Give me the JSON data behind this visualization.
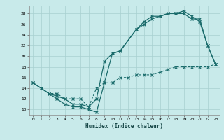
{
  "xlabel": "Humidex (Indice chaleur)",
  "bg_color": "#c8eaea",
  "grid_color": "#a8d0d0",
  "line_color": "#1a6b6b",
  "xlim": [
    -0.5,
    23.5
  ],
  "ylim": [
    9,
    29.5
  ],
  "yticks": [
    10,
    12,
    14,
    16,
    18,
    20,
    22,
    24,
    26,
    28
  ],
  "xticks": [
    0,
    1,
    2,
    3,
    4,
    5,
    6,
    7,
    8,
    9,
    10,
    11,
    12,
    13,
    14,
    15,
    16,
    17,
    18,
    19,
    20,
    21,
    22,
    23
  ],
  "line1_x": [
    0,
    1,
    2,
    3,
    4,
    5,
    6,
    7,
    8,
    9,
    10,
    11,
    13,
    14,
    15,
    16,
    17,
    18,
    19,
    20,
    21,
    22,
    23
  ],
  "line1_y": [
    15,
    14,
    13,
    12,
    11,
    10.5,
    10.5,
    10,
    9.5,
    15,
    20.5,
    21,
    25,
    26.5,
    27.5,
    27.5,
    28,
    28,
    28.5,
    27.5,
    26.5,
    22,
    18.5
  ],
  "line2_x": [
    0,
    1,
    2,
    3,
    4,
    5,
    6,
    7,
    8,
    9,
    10,
    11,
    13,
    14,
    15,
    16,
    17,
    18,
    19,
    20,
    21,
    22,
    23
  ],
  "line2_y": [
    15,
    14,
    13,
    12.5,
    12,
    11,
    11,
    10.5,
    12,
    19,
    20.5,
    21,
    25,
    26,
    27,
    27.5,
    28,
    28,
    28,
    27,
    27,
    22,
    18.5
  ],
  "line3_x": [
    1,
    2,
    3,
    4,
    5,
    6,
    7,
    8,
    9,
    10,
    11,
    12,
    13,
    14,
    15,
    16,
    17,
    18,
    19,
    20,
    21,
    22,
    23
  ],
  "line3_y": [
    14,
    13,
    13,
    12,
    12,
    12,
    10.5,
    14,
    15,
    15,
    16,
    16,
    16.5,
    16.5,
    16.5,
    17,
    17.5,
    18,
    18,
    18,
    18,
    18,
    18.5
  ]
}
